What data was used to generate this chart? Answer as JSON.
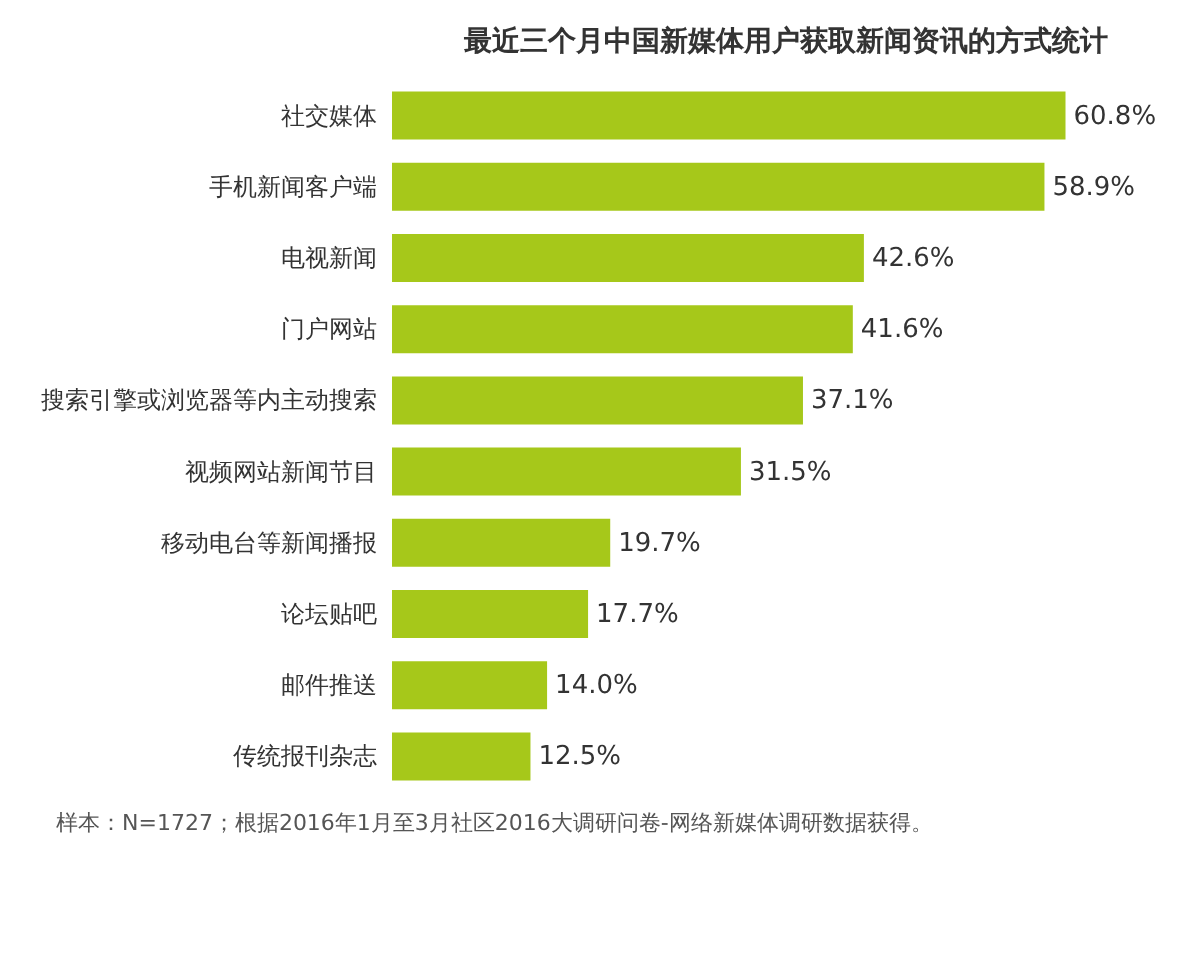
{
  "chart_data": {
    "type": "bar",
    "orientation": "horizontal",
    "title": "最近三个月中国新媒体用户获取新闻资讯的方式统计",
    "categories": [
      "社交媒体",
      "手机新闻客户端",
      "电视新闻",
      "门户网站",
      "搜索引擎或浏览器等内主动搜索",
      "视频网站新闻节目",
      "移动电台等新闻播报",
      "论坛贴吧",
      "邮件推送",
      "传统报刊杂志"
    ],
    "values": [
      60.8,
      58.9,
      42.6,
      41.6,
      37.1,
      31.5,
      19.7,
      17.7,
      14.0,
      12.5
    ],
    "value_labels": [
      "60.8%",
      "58.9%",
      "42.6%",
      "41.6%",
      "37.1%",
      "31.5%",
      "19.7%",
      "17.7%",
      "14.0%",
      "12.5%"
    ],
    "color": "#a6c81a",
    "annotations": [
      "样本：N=1727；根据2016年1月至3月社区2016大调研问卷-网络新媒体调研数据获得。"
    ]
  }
}
